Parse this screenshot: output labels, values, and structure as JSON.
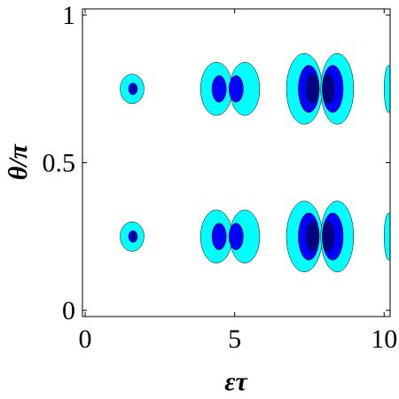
{
  "chart_data": {
    "type": "contour",
    "x_label": "ετ",
    "y_label": "θ/π",
    "xlim": [
      -0.09,
      10.2
    ],
    "ylim": [
      -0.021,
      1.021
    ],
    "xticks": [
      0,
      5,
      10
    ],
    "yticks": [
      0,
      0.5,
      1
    ],
    "levels": [
      {
        "color": "#00ffff",
        "blobs": [
          {
            "x": 1.57,
            "y": 0.75,
            "rx": 0.4,
            "ry": 0.05
          },
          {
            "x": 1.57,
            "y": 0.25,
            "rx": 0.4,
            "ry": 0.05
          },
          {
            "x": 4.39,
            "y": 0.75,
            "rx": 0.53,
            "ry": 0.09
          },
          {
            "x": 4.39,
            "y": 0.25,
            "rx": 0.53,
            "ry": 0.09
          },
          {
            "x": 5.34,
            "y": 0.75,
            "rx": 0.5,
            "ry": 0.09
          },
          {
            "x": 5.34,
            "y": 0.25,
            "rx": 0.5,
            "ry": 0.09
          },
          {
            "x": 7.33,
            "y": 0.75,
            "rx": 0.6,
            "ry": 0.12
          },
          {
            "x": 7.33,
            "y": 0.25,
            "rx": 0.6,
            "ry": 0.12
          },
          {
            "x": 8.43,
            "y": 0.75,
            "rx": 0.55,
            "ry": 0.12
          },
          {
            "x": 8.43,
            "y": 0.25,
            "rx": 0.55,
            "ry": 0.12
          },
          {
            "x": 10.15,
            "y": 0.75,
            "rx": 0.15,
            "ry": 0.08
          },
          {
            "x": 10.15,
            "y": 0.25,
            "rx": 0.15,
            "ry": 0.08
          }
        ]
      },
      {
        "color": "#0000ff",
        "blobs": [
          {
            "x": 1.6,
            "y": 0.75,
            "rx": 0.15,
            "ry": 0.02
          },
          {
            "x": 1.6,
            "y": 0.25,
            "rx": 0.15,
            "ry": 0.02
          },
          {
            "x": 4.48,
            "y": 0.75,
            "rx": 0.24,
            "ry": 0.045
          },
          {
            "x": 4.48,
            "y": 0.25,
            "rx": 0.24,
            "ry": 0.045
          },
          {
            "x": 5.05,
            "y": 0.75,
            "rx": 0.24,
            "ry": 0.045
          },
          {
            "x": 5.05,
            "y": 0.25,
            "rx": 0.24,
            "ry": 0.045
          },
          {
            "x": 7.48,
            "y": 0.75,
            "rx": 0.35,
            "ry": 0.08
          },
          {
            "x": 7.48,
            "y": 0.25,
            "rx": 0.35,
            "ry": 0.08
          },
          {
            "x": 8.28,
            "y": 0.75,
            "rx": 0.35,
            "ry": 0.08
          },
          {
            "x": 8.28,
            "y": 0.25,
            "rx": 0.35,
            "ry": 0.08
          }
        ]
      },
      {
        "color": "#000080",
        "blobs": [
          {
            "x": 1.62,
            "y": 0.75,
            "rx": 0.06,
            "ry": 0.012
          },
          {
            "x": 1.62,
            "y": 0.25,
            "rx": 0.06,
            "ry": 0.012
          },
          {
            "x": 7.6,
            "y": 0.75,
            "rx": 0.2,
            "ry": 0.05
          },
          {
            "x": 7.6,
            "y": 0.25,
            "rx": 0.2,
            "ry": 0.05
          },
          {
            "x": 8.13,
            "y": 0.75,
            "rx": 0.2,
            "ry": 0.05
          },
          {
            "x": 8.13,
            "y": 0.25,
            "rx": 0.2,
            "ry": 0.05
          }
        ]
      }
    ]
  }
}
